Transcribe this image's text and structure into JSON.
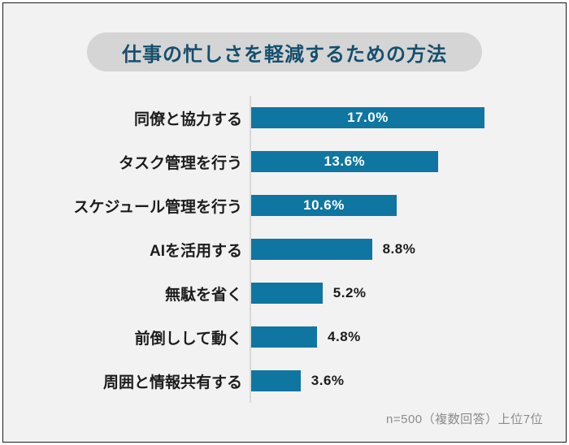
{
  "title": {
    "text": "仕事の忙しさを軽減するための方法"
  },
  "footer": {
    "note": "n=500（複数回答）上位7位"
  },
  "colors": {
    "bar": "#0e76a1",
    "title_text": "#154f6d",
    "title_pill_bg": "#d5d5d5",
    "background": "#f2f2f2",
    "axis_line": "#d8d8d8",
    "label_text": "#1c1c1c",
    "note_text": "#8c8c8c"
  },
  "chart_data": {
    "type": "bar",
    "orientation": "horizontal",
    "title": "仕事の忙しさを軽減するための方法",
    "note": "n=500（複数回答）上位7位",
    "xlim": [
      0,
      17
    ],
    "grid": false,
    "legend": false,
    "categories": [
      "同僚と協力する",
      "タスク管理を行う",
      "スケジュール管理を行う",
      "AIを活用する",
      "無駄を省く",
      "前倒しして動く",
      "周囲と情報共有する"
    ],
    "values": [
      17.0,
      13.6,
      10.6,
      8.8,
      5.2,
      4.8,
      3.6
    ],
    "value_labels": [
      "17.0%",
      "13.6%",
      "10.6%",
      "8.8%",
      "5.2%",
      "4.8%",
      "3.6%"
    ],
    "value_label_inside": [
      true,
      true,
      true,
      false,
      false,
      false,
      false
    ]
  }
}
